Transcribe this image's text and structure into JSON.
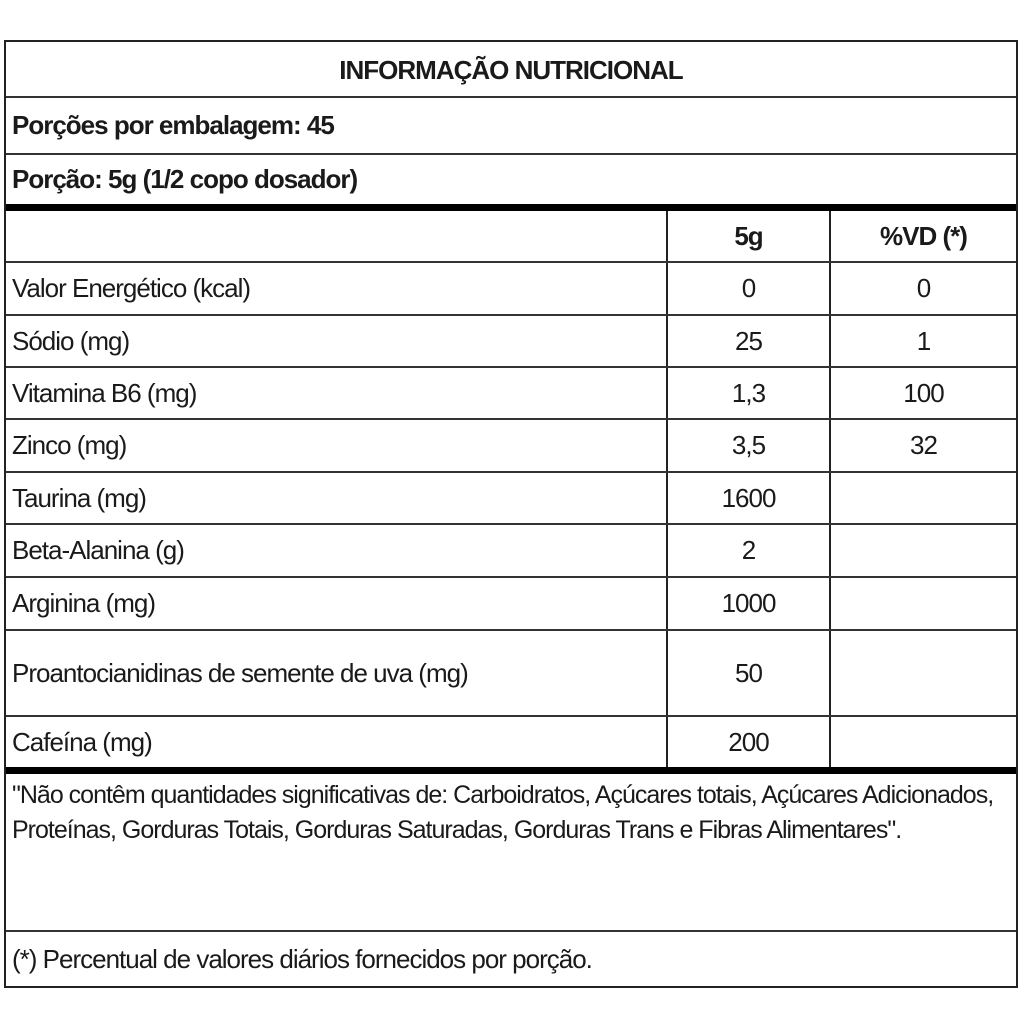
{
  "title": "INFORMAÇÃO NUTRICIONAL",
  "servings_per_package": "Porções por embalagem: 45",
  "serving_size": "Porção: 5g (1/2 copo dosador)",
  "columns": [
    "",
    "5g",
    "%VD (*)"
  ],
  "rows": [
    {
      "name": "Valor Energético (kcal)",
      "amount": "0",
      "dv": "0"
    },
    {
      "name": "Sódio (mg)",
      "amount": "25",
      "dv": "1"
    },
    {
      "name": "Vitamina B6 (mg)",
      "amount": "1,3",
      "dv": "100"
    },
    {
      "name": "Zinco (mg)",
      "amount": "3,5",
      "dv": "32"
    },
    {
      "name": "Taurina (mg)",
      "amount": "1600",
      "dv": ""
    },
    {
      "name": "Beta-Alanina (g)",
      "amount": "2",
      "dv": ""
    },
    {
      "name": "Arginina (mg)",
      "amount": "1000",
      "dv": ""
    },
    {
      "name": "Proantocianidinas de semente de uva (mg)",
      "amount": "50",
      "dv": ""
    },
    {
      "name": "Cafeína (mg)",
      "amount": "200",
      "dv": ""
    }
  ],
  "note": "\"Não contêm quantidades significativas de: Carboidratos, Açúcares totais, Açúcares Adicionados, Proteínas, Gorduras Totais, Gorduras Saturadas, Gorduras Trans e Fibras Alimentares\".",
  "footnote": "(*) Percentual de valores diários fornecidos por porção."
}
